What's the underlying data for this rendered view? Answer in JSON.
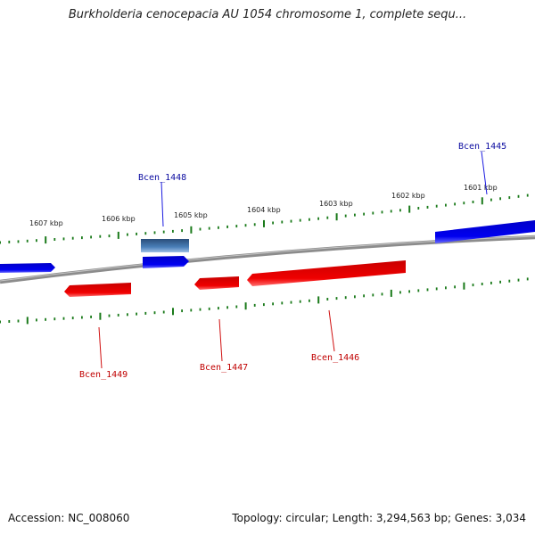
{
  "title": "Burkholderia cenocepacia AU 1054 chromosome 1, complete sequ...",
  "footer": {
    "accession": "Accession: NC_008060",
    "summary": "Topology: circular; Length: 3,294,563 bp; Genes: 3,034"
  },
  "kbp_labels": [
    "1607 kbp",
    "1606 kbp",
    "1605 kbp",
    "1604 kbp",
    "1603 kbp",
    "1602 kbp",
    "1601 kbp"
  ],
  "genes": {
    "forward": [
      "Bcen_1448",
      "Bcen_1445"
    ],
    "reverse": [
      "Bcen_1449",
      "Bcen_1447",
      "Bcen_1446"
    ]
  },
  "colors": {
    "forward_gene": "#0000e0",
    "selected_gene": "#3a6ea5",
    "reverse_gene": "#e80000",
    "backbone": "#888888",
    "ticks": "#1a7a1a"
  }
}
